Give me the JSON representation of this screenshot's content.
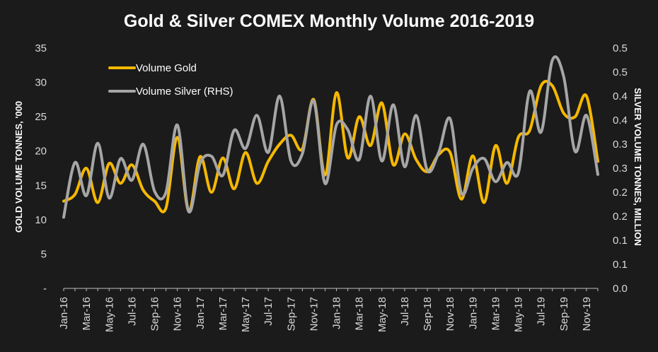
{
  "chart_data": {
    "type": "line",
    "title": "Gold & Silver COMEX Monthly Volume 2016-2019",
    "ylabel_left": "GOLD VOLUME TONNES, '000",
    "ylabel_right": "SILVER VOLUME TONNES, MILLION",
    "ylim_left": [
      0,
      35
    ],
    "ylim_right": [
      0,
      0.5
    ],
    "yticks_left": [
      "-",
      "5",
      "10",
      "15",
      "20",
      "25",
      "30",
      "35"
    ],
    "yticks_right": [
      "0.0",
      "0.1",
      "0.1",
      "0.2",
      "0.2",
      "0.3",
      "0.3",
      "0.4",
      "0.4",
      "0.5",
      "0.5"
    ],
    "xtick_labels": [
      "Jan-16",
      "Mar-16",
      "May-16",
      "Jul-16",
      "Sep-16",
      "Nov-16",
      "Jan-17",
      "Mar-17",
      "May-17",
      "Jul-17",
      "Sep-17",
      "Nov-17",
      "Jan-18",
      "Mar-18",
      "May-18",
      "Jul-18",
      "Sep-18",
      "Nov-18",
      "Jan-19",
      "Mar-19",
      "May-19",
      "Jul-19",
      "Sep-19",
      "Nov-19"
    ],
    "categories": [
      "Jan-16",
      "Feb-16",
      "Mar-16",
      "Apr-16",
      "May-16",
      "Jun-16",
      "Jul-16",
      "Aug-16",
      "Sep-16",
      "Oct-16",
      "Nov-16",
      "Dec-16",
      "Jan-17",
      "Feb-17",
      "Mar-17",
      "Apr-17",
      "May-17",
      "Jun-17",
      "Jul-17",
      "Aug-17",
      "Sep-17",
      "Oct-17",
      "Nov-17",
      "Dec-17",
      "Jan-18",
      "Feb-18",
      "Mar-18",
      "Apr-18",
      "May-18",
      "Jun-18",
      "Jul-18",
      "Aug-18",
      "Sep-18",
      "Oct-18",
      "Nov-18",
      "Dec-18",
      "Jan-19",
      "Feb-19",
      "Mar-19",
      "Apr-19",
      "May-19",
      "Jun-19",
      "Jul-19",
      "Aug-19",
      "Sep-19",
      "Oct-19",
      "Nov-19",
      "Dec-19"
    ],
    "series": [
      {
        "name": "Volume Gold",
        "axis": "left",
        "color": "#f5b800",
        "values": [
          12.7,
          13.7,
          17.5,
          12.5,
          18.2,
          15.3,
          18.0,
          14.3,
          12.7,
          11.7,
          22.0,
          11.2,
          19.2,
          14.0,
          19.0,
          14.5,
          19.8,
          15.3,
          18.5,
          21.0,
          22.3,
          20.3,
          27.5,
          16.5,
          28.5,
          19.0,
          25.0,
          20.8,
          27.0,
          18.0,
          22.5,
          18.8,
          17.0,
          19.5,
          19.8,
          13.0,
          19.3,
          12.5,
          20.8,
          15.3,
          22.0,
          23.0,
          29.5,
          29.5,
          25.5,
          25.0,
          28.0,
          18.5
        ]
      },
      {
        "name": "Volume Silver (RHS)",
        "axis": "right",
        "color": "#a6a6a6",
        "values": [
          0.148,
          0.262,
          0.193,
          0.302,
          0.188,
          0.27,
          0.225,
          0.3,
          0.202,
          0.2,
          0.34,
          0.16,
          0.26,
          0.275,
          0.235,
          0.329,
          0.291,
          0.36,
          0.283,
          0.4,
          0.265,
          0.28,
          0.39,
          0.218,
          0.34,
          0.33,
          0.268,
          0.4,
          0.265,
          0.382,
          0.253,
          0.36,
          0.245,
          0.283,
          0.353,
          0.198,
          0.25,
          0.27,
          0.222,
          0.262,
          0.24,
          0.41,
          0.325,
          0.475,
          0.44,
          0.285,
          0.36,
          0.237
        ]
      }
    ],
    "legend_position": "top-left",
    "grid": false
  }
}
